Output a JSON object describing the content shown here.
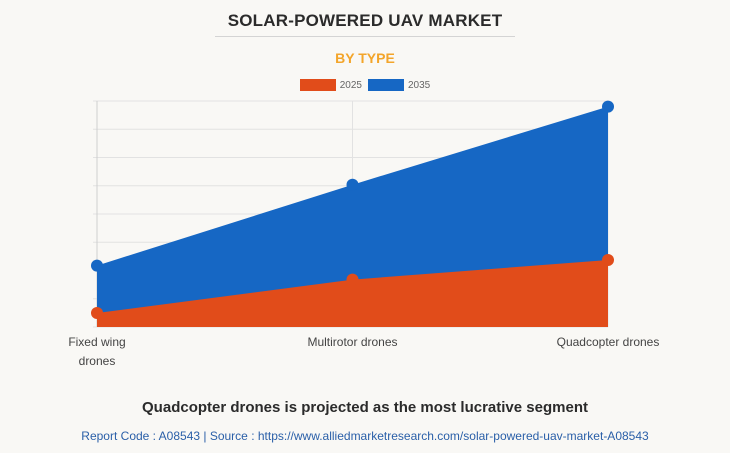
{
  "header": {
    "title": "SOLAR-POWERED UAV MARKET",
    "subtitle": "BY TYPE"
  },
  "colors": {
    "series_2025": "#e14c1a",
    "series_2035": "#1667c4",
    "title_accent": "#f3a52a",
    "gridline": "#e2e2e2"
  },
  "chart_data": {
    "type": "area",
    "categories": [
      "Fixed wing drones",
      "Multirotor drones",
      "Quadcopter drones"
    ],
    "category_lines": [
      [
        "Fixed wing",
        "drones"
      ],
      [
        "Multirotor drones"
      ],
      [
        "Quadcopter drones"
      ]
    ],
    "series": [
      {
        "name": "2025",
        "values": [
          0.5,
          1.7,
          2.4
        ]
      },
      {
        "name": "2035",
        "values": [
          2.2,
          5.1,
          7.9
        ]
      }
    ],
    "ylim": [
      0,
      8.1
    ],
    "grid": true,
    "legend_position": "top-center",
    "stacked_overlay": true
  },
  "footer": {
    "headline": "Quadcopter drones is projected as the most lucrative segment",
    "source": "Report Code : A08543  |  Source : https://www.alliedmarketresearch.com/solar-powered-uav-market-A08543"
  }
}
